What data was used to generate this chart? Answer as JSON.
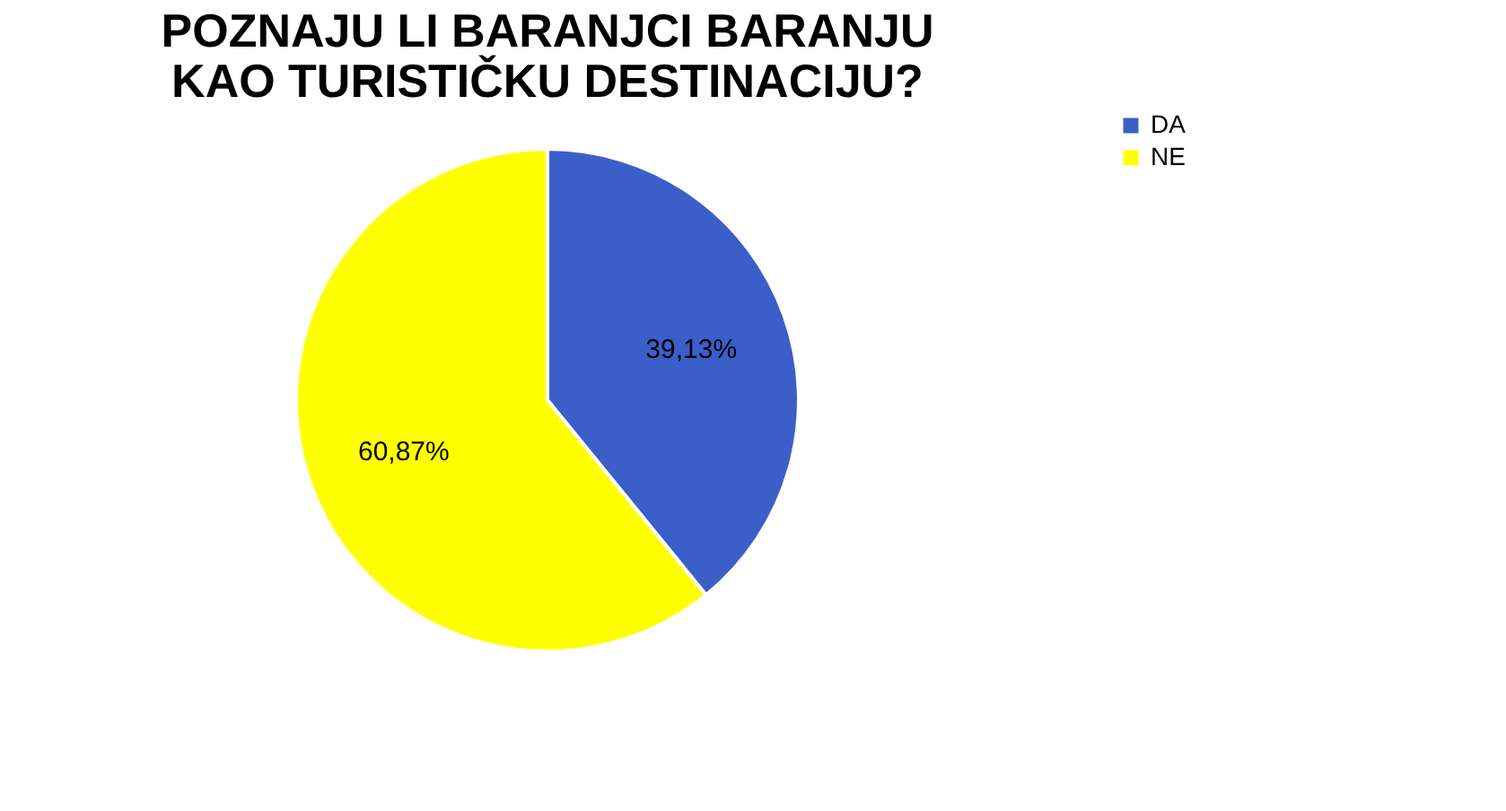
{
  "chart_data": {
    "type": "pie",
    "title": "POZNAJU LI BARANJCI BARANJU KAO TURISTIČKU DESTINACIJU?",
    "categories": [
      "DA",
      "NE"
    ],
    "values": [
      39.13,
      60.87
    ],
    "colors": [
      "#3a5fc8",
      "#ffff00"
    ],
    "value_labels": [
      "39,13%",
      "60,87%"
    ],
    "legend": "right"
  }
}
